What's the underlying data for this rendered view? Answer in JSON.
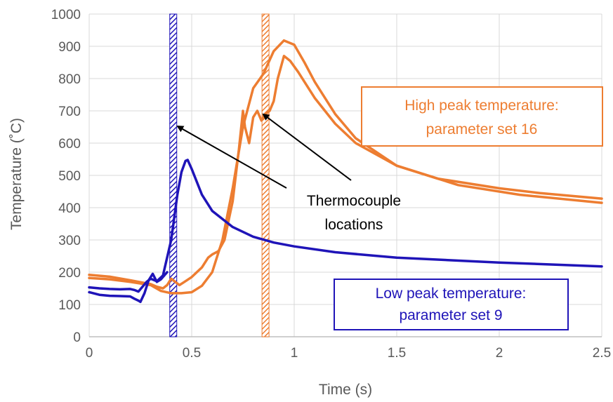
{
  "chart_data": {
    "type": "line",
    "xlabel": "Time (s)",
    "ylabel": "Temperature (˚C)",
    "xlim": [
      0,
      2.5
    ],
    "ylim": [
      0,
      1000
    ],
    "x_ticks": [
      "0",
      "0.5",
      "1",
      "1.5",
      "2",
      "2.5"
    ],
    "y_ticks": [
      "0",
      "100",
      "200",
      "300",
      "400",
      "500",
      "600",
      "700",
      "800",
      "900",
      "1000"
    ],
    "grid": true,
    "colors": {
      "orange": "#ED7D31",
      "blue": "#1F14B8",
      "grid": "#D9D9D9",
      "text": "#595959"
    },
    "series": [
      {
        "group": "high",
        "color": "#ED7D31",
        "x": [
          0,
          0.1,
          0.2,
          0.3,
          0.33,
          0.36,
          0.38,
          0.4,
          0.42,
          0.44,
          0.46,
          0.5,
          0.55,
          0.58,
          0.6,
          0.63,
          0.66,
          0.7,
          0.73,
          0.75,
          0.76,
          0.78,
          0.8,
          0.82,
          0.84,
          0.86,
          0.88,
          0.9,
          0.92,
          0.95,
          0.98,
          1.02,
          1.1,
          1.2,
          1.3,
          1.5,
          1.7,
          2.0,
          2.2,
          2.5
        ],
        "y": [
          192,
          186,
          175,
          163,
          155,
          150,
          160,
          180,
          170,
          160,
          168,
          185,
          215,
          245,
          255,
          265,
          300,
          420,
          580,
          700,
          650,
          600,
          680,
          700,
          670,
          690,
          700,
          730,
          800,
          870,
          855,
          820,
          740,
          660,
          600,
          530,
          490,
          460,
          445,
          428
        ]
      },
      {
        "group": "high",
        "color": "#ED7D31",
        "x": [
          0,
          0.1,
          0.2,
          0.3,
          0.35,
          0.4,
          0.45,
          0.5,
          0.55,
          0.6,
          0.62,
          0.65,
          0.7,
          0.75,
          0.8,
          0.85,
          0.9,
          0.95,
          1.0,
          1.05,
          1.1,
          1.2,
          1.3,
          1.5,
          1.8,
          2.1,
          2.5
        ],
        "y": [
          182,
          178,
          170,
          160,
          142,
          135,
          135,
          138,
          158,
          200,
          240,
          300,
          460,
          650,
          770,
          815,
          885,
          918,
          905,
          850,
          790,
          690,
          615,
          530,
          470,
          440,
          415
        ]
      },
      {
        "group": "low",
        "color": "#1F14B8",
        "x": [
          0,
          0.05,
          0.1,
          0.15,
          0.2,
          0.22,
          0.24,
          0.26,
          0.28,
          0.3,
          0.33,
          0.36,
          0.4,
          0.43,
          0.45,
          0.47,
          0.48,
          0.5,
          0.55,
          0.6,
          0.7,
          0.8,
          0.9,
          1.0,
          1.2,
          1.5,
          2.0,
          2.5
        ],
        "y": [
          153,
          150,
          148,
          147,
          148,
          145,
          140,
          155,
          170,
          180,
          172,
          190,
          300,
          440,
          510,
          545,
          548,
          520,
          440,
          390,
          340,
          310,
          292,
          280,
          262,
          245,
          230,
          218
        ]
      },
      {
        "group": "low",
        "color": "#1F14B8",
        "x": [
          0,
          0.05,
          0.1,
          0.15,
          0.2,
          0.22,
          0.24,
          0.25,
          0.27,
          0.29,
          0.31,
          0.33,
          0.35,
          0.38
        ],
        "y": [
          138,
          130,
          127,
          126,
          125,
          118,
          112,
          108,
          135,
          175,
          195,
          170,
          178,
          200
        ]
      }
    ],
    "markers": [
      {
        "label": "Thermocouple locations",
        "x": 0.41,
        "color": "#1F14B8"
      },
      {
        "label": "Thermocouple locations",
        "x": 0.86,
        "color": "#ED7D31"
      }
    ],
    "annotations": {
      "high": [
        "High peak temperature:",
        "parameter set 16"
      ],
      "low": [
        "Low peak temperature:",
        "parameter set 9"
      ],
      "thermo": [
        "Thermocouple",
        "locations"
      ]
    }
  }
}
